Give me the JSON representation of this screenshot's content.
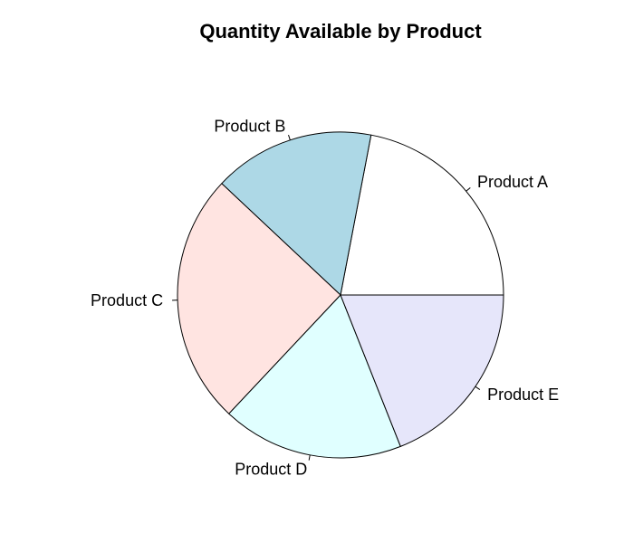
{
  "chart_data": {
    "type": "pie",
    "title": "Quantity Available by Product",
    "slices": [
      {
        "label": "Product A",
        "value": 22,
        "color": "#ffffff"
      },
      {
        "label": "Product B",
        "value": 16,
        "color": "#add8e6"
      },
      {
        "label": "Product C",
        "value": 25,
        "color": "#ffe4e1"
      },
      {
        "label": "Product D",
        "value": 18,
        "color": "#e0ffff"
      },
      {
        "label": "Product E",
        "value": 19,
        "color": "#e6e6fa"
      }
    ],
    "start_angle_deg": 0,
    "direction": "counterclockwise",
    "border_color": "#000000"
  }
}
